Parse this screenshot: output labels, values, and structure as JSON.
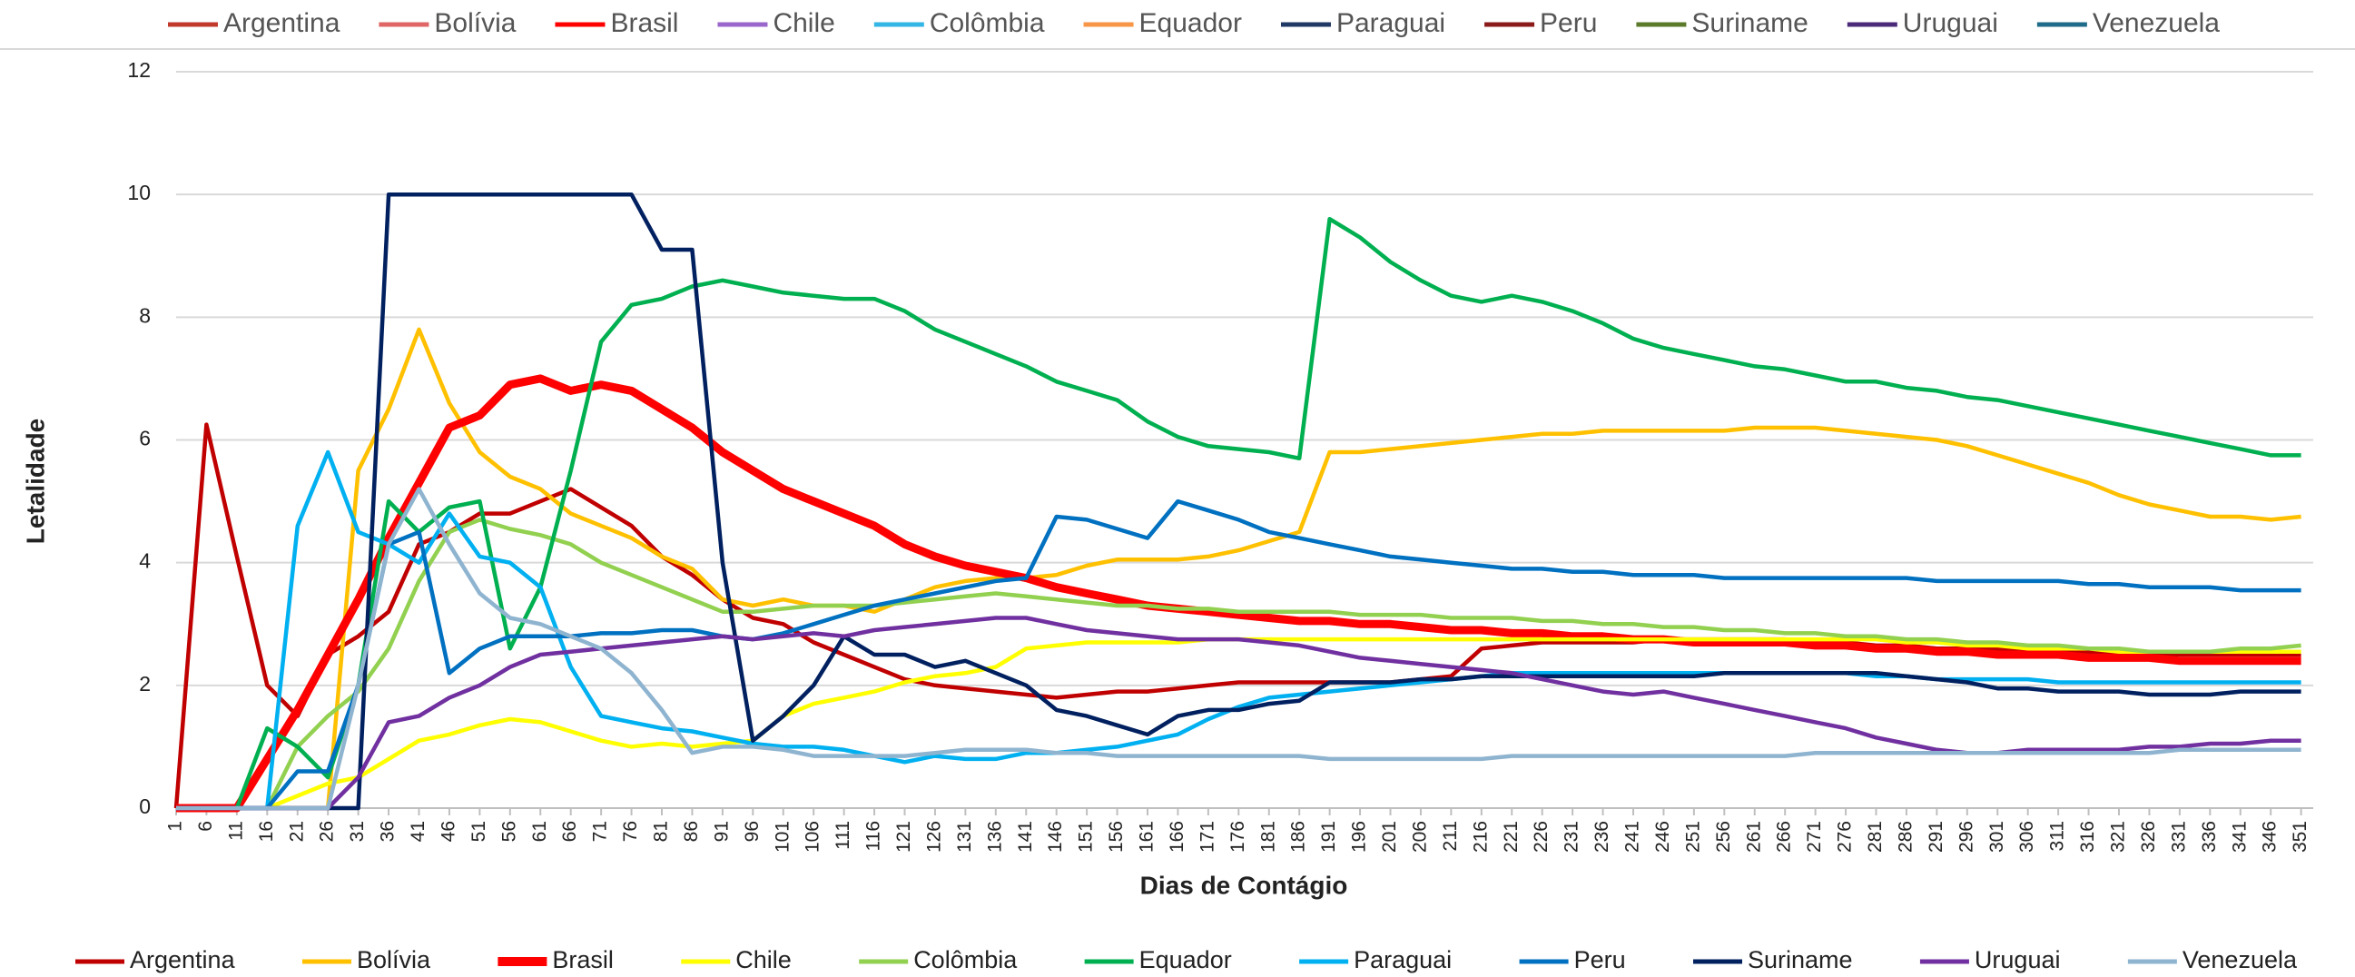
{
  "chart_data": {
    "type": "line",
    "top_legend": [
      {
        "name": "Argentina",
        "color": "#c0392b"
      },
      {
        "name": "Bolívia",
        "color": "#e06666"
      },
      {
        "name": "Brasil",
        "color": "#ff0000"
      },
      {
        "name": "Chile",
        "color": "#9966cc"
      },
      {
        "name": "Colômbia",
        "color": "#33b5e5"
      },
      {
        "name": "Equador",
        "color": "#f79646"
      },
      {
        "name": "Paraguai",
        "color": "#1f3864"
      },
      {
        "name": "Peru",
        "color": "#8b1a1a"
      },
      {
        "name": "Suriname",
        "color": "#5b7a2a"
      },
      {
        "name": "Uruguai",
        "color": "#4b2a7a"
      },
      {
        "name": "Venezuela",
        "color": "#1f6b8a"
      }
    ],
    "ylabel": "Letalidade",
    "xlabel": "Dias de Contágio",
    "x": [
      1,
      6,
      11,
      16,
      21,
      26,
      31,
      36,
      41,
      46,
      51,
      56,
      61,
      66,
      71,
      76,
      81,
      86,
      91,
      96,
      101,
      106,
      111,
      116,
      121,
      126,
      131,
      136,
      141,
      146,
      151,
      156,
      161,
      166,
      171,
      176,
      181,
      186,
      191,
      196,
      201,
      206,
      211,
      216,
      221,
      226,
      231,
      236,
      241,
      246,
      251,
      256,
      261,
      266,
      271,
      276,
      281,
      286,
      291,
      296,
      301,
      306,
      311,
      316,
      321,
      326,
      331,
      336,
      341,
      346,
      351
    ],
    "xticks": [
      1,
      6,
      11,
      16,
      21,
      26,
      31,
      36,
      41,
      46,
      51,
      56,
      61,
      66,
      71,
      76,
      81,
      86,
      91,
      96,
      101,
      106,
      111,
      116,
      121,
      126,
      131,
      136,
      141,
      146,
      151,
      156,
      161,
      166,
      171,
      176,
      181,
      186,
      191,
      196,
      201,
      206,
      211,
      216,
      221,
      226,
      231,
      236,
      241,
      246,
      251,
      256,
      261,
      266,
      271,
      276,
      281,
      286,
      291,
      296,
      301,
      306,
      311,
      316,
      321,
      326,
      331,
      336,
      341,
      346,
      351
    ],
    "xlim": [
      1,
      353
    ],
    "ylim": [
      0,
      12
    ],
    "yticks": [
      0,
      2,
      4,
      6,
      8,
      10,
      12
    ],
    "grid": true,
    "series": [
      {
        "name": "Argentina",
        "color": "#c00000",
        "values": [
          0,
          6.25,
          4.1,
          2.0,
          1.5,
          2.5,
          2.8,
          3.2,
          4.3,
          4.5,
          4.8,
          4.8,
          5.0,
          5.2,
          4.9,
          4.6,
          4.1,
          3.8,
          3.4,
          3.1,
          3.0,
          2.7,
          2.5,
          2.3,
          2.1,
          2.0,
          1.95,
          1.9,
          1.85,
          1.8,
          1.85,
          1.9,
          1.9,
          1.95,
          2.0,
          2.05,
          2.05,
          2.05,
          2.05,
          2.05,
          2.05,
          2.1,
          2.15,
          2.6,
          2.65,
          2.7,
          2.7,
          2.7,
          2.7,
          2.75,
          2.75,
          2.75,
          2.75,
          2.75,
          2.7,
          2.7,
          2.65,
          2.65,
          2.6,
          2.6,
          2.6,
          2.55,
          2.55,
          2.55,
          2.5,
          2.5,
          2.5,
          2.5,
          2.5,
          2.5,
          2.5
        ]
      },
      {
        "name": "Bolívia",
        "color": "#ffc000",
        "values": [
          0,
          0,
          0,
          0,
          0,
          0,
          5.5,
          6.5,
          7.8,
          6.6,
          5.8,
          5.4,
          5.2,
          4.8,
          4.6,
          4.4,
          4.1,
          3.9,
          3.4,
          3.3,
          3.4,
          3.3,
          3.3,
          3.2,
          3.4,
          3.6,
          3.7,
          3.75,
          3.75,
          3.8,
          3.95,
          4.05,
          4.05,
          4.05,
          4.1,
          4.2,
          4.35,
          4.5,
          5.8,
          5.8,
          5.85,
          5.9,
          5.95,
          6.0,
          6.05,
          6.1,
          6.1,
          6.15,
          6.15,
          6.15,
          6.15,
          6.15,
          6.2,
          6.2,
          6.2,
          6.15,
          6.1,
          6.05,
          6.0,
          5.9,
          5.75,
          5.6,
          5.45,
          5.3,
          5.1,
          4.95,
          4.85,
          4.75,
          4.75,
          4.7,
          4.75
        ]
      },
      {
        "name": "Brasil",
        "color": "#ff0000",
        "bold": true,
        "values": [
          0,
          0,
          0,
          0.8,
          1.6,
          2.5,
          3.4,
          4.4,
          5.3,
          6.2,
          6.4,
          6.9,
          7.0,
          6.8,
          6.9,
          6.8,
          6.5,
          6.2,
          5.8,
          5.5,
          5.2,
          5.0,
          4.8,
          4.6,
          4.3,
          4.1,
          3.95,
          3.85,
          3.75,
          3.6,
          3.5,
          3.4,
          3.3,
          3.25,
          3.2,
          3.15,
          3.1,
          3.05,
          3.05,
          3.0,
          3.0,
          2.95,
          2.9,
          2.9,
          2.85,
          2.85,
          2.8,
          2.8,
          2.75,
          2.75,
          2.7,
          2.7,
          2.7,
          2.7,
          2.65,
          2.65,
          2.6,
          2.6,
          2.55,
          2.55,
          2.5,
          2.5,
          2.5,
          2.45,
          2.45,
          2.45,
          2.4,
          2.4,
          2.4,
          2.4,
          2.4
        ]
      },
      {
        "name": "Chile",
        "color": "#ffff00",
        "values": [
          0,
          0,
          0,
          0,
          0.2,
          0.4,
          0.5,
          0.8,
          1.1,
          1.2,
          1.35,
          1.45,
          1.4,
          1.25,
          1.1,
          1.0,
          1.05,
          1.0,
          1.05,
          1.1,
          1.5,
          1.7,
          1.8,
          1.9,
          2.05,
          2.15,
          2.2,
          2.3,
          2.6,
          2.65,
          2.7,
          2.7,
          2.7,
          2.7,
          2.75,
          2.75,
          2.75,
          2.75,
          2.75,
          2.75,
          2.75,
          2.75,
          2.75,
          2.75,
          2.75,
          2.75,
          2.75,
          2.75,
          2.75,
          2.75,
          2.75,
          2.75,
          2.75,
          2.75,
          2.75,
          2.75,
          2.75,
          2.7,
          2.7,
          2.65,
          2.65,
          2.6,
          2.6,
          2.6,
          2.55,
          2.55,
          2.55,
          2.55,
          2.55,
          2.55,
          2.55
        ]
      },
      {
        "name": "Colômbia",
        "color": "#92d050",
        "values": [
          0,
          0,
          0,
          0,
          1.0,
          1.5,
          1.9,
          2.6,
          3.7,
          4.5,
          4.7,
          4.55,
          4.45,
          4.3,
          4.0,
          3.8,
          3.6,
          3.4,
          3.2,
          3.2,
          3.25,
          3.3,
          3.3,
          3.3,
          3.35,
          3.4,
          3.45,
          3.5,
          3.45,
          3.4,
          3.35,
          3.3,
          3.3,
          3.25,
          3.25,
          3.2,
          3.2,
          3.2,
          3.2,
          3.15,
          3.15,
          3.15,
          3.1,
          3.1,
          3.1,
          3.05,
          3.05,
          3.0,
          3.0,
          2.95,
          2.95,
          2.9,
          2.9,
          2.85,
          2.85,
          2.8,
          2.8,
          2.75,
          2.75,
          2.7,
          2.7,
          2.65,
          2.65,
          2.6,
          2.6,
          2.55,
          2.55,
          2.55,
          2.6,
          2.6,
          2.65
        ]
      },
      {
        "name": "Equador",
        "color": "#00b050",
        "values": [
          0,
          0,
          0,
          1.3,
          1.0,
          0.5,
          2.0,
          5.0,
          4.5,
          4.9,
          5.0,
          2.6,
          3.6,
          5.5,
          7.6,
          8.2,
          8.3,
          8.5,
          8.6,
          8.5,
          8.4,
          8.35,
          8.3,
          8.3,
          8.1,
          7.8,
          7.6,
          7.4,
          7.2,
          6.95,
          6.8,
          6.65,
          6.3,
          6.05,
          5.9,
          5.85,
          5.8,
          5.7,
          9.6,
          9.3,
          8.9,
          8.6,
          8.35,
          8.25,
          8.35,
          8.25,
          8.1,
          7.9,
          7.65,
          7.5,
          7.4,
          7.3,
          7.2,
          7.15,
          7.05,
          6.95,
          6.95,
          6.85,
          6.8,
          6.7,
          6.65,
          6.55,
          6.45,
          6.35,
          6.25,
          6.15,
          6.05,
          5.95,
          5.85,
          5.75,
          5.75
        ]
      },
      {
        "name": "Paraguai",
        "color": "#00b0f0",
        "values": [
          0,
          0,
          0,
          0,
          4.6,
          5.8,
          4.5,
          4.3,
          4.0,
          4.8,
          4.1,
          4.0,
          3.6,
          2.3,
          1.5,
          1.4,
          1.3,
          1.25,
          1.15,
          1.05,
          1.0,
          1.0,
          0.95,
          0.85,
          0.75,
          0.85,
          0.8,
          0.8,
          0.9,
          0.9,
          0.95,
          1.0,
          1.1,
          1.2,
          1.45,
          1.65,
          1.8,
          1.85,
          1.9,
          1.95,
          2.0,
          2.05,
          2.1,
          2.15,
          2.2,
          2.2,
          2.2,
          2.2,
          2.2,
          2.2,
          2.2,
          2.2,
          2.2,
          2.2,
          2.2,
          2.2,
          2.15,
          2.15,
          2.1,
          2.1,
          2.1,
          2.1,
          2.05,
          2.05,
          2.05,
          2.05,
          2.05,
          2.05,
          2.05,
          2.05,
          2.05
        ]
      },
      {
        "name": "Peru",
        "color": "#0070c0",
        "values": [
          0,
          0,
          0,
          0,
          0.6,
          0.6,
          2.0,
          4.3,
          4.5,
          2.2,
          2.6,
          2.8,
          2.8,
          2.8,
          2.85,
          2.85,
          2.9,
          2.9,
          2.8,
          2.75,
          2.85,
          3.0,
          3.15,
          3.3,
          3.4,
          3.5,
          3.6,
          3.7,
          3.75,
          4.75,
          4.7,
          4.55,
          4.4,
          5.0,
          4.85,
          4.7,
          4.5,
          4.4,
          4.3,
          4.2,
          4.1,
          4.05,
          4.0,
          3.95,
          3.9,
          3.9,
          3.85,
          3.85,
          3.8,
          3.8,
          3.8,
          3.75,
          3.75,
          3.75,
          3.75,
          3.75,
          3.75,
          3.75,
          3.7,
          3.7,
          3.7,
          3.7,
          3.7,
          3.65,
          3.65,
          3.6,
          3.6,
          3.6,
          3.55,
          3.55,
          3.55
        ]
      },
      {
        "name": "Suriname",
        "color": "#002060",
        "values": [
          0,
          0,
          0,
          0,
          0,
          0,
          0,
          10,
          10,
          10,
          10,
          10,
          10,
          10,
          10,
          10,
          9.1,
          9.1,
          4.0,
          1.1,
          1.5,
          2.0,
          2.8,
          2.5,
          2.5,
          2.3,
          2.4,
          2.2,
          2.0,
          1.6,
          1.5,
          1.35,
          1.2,
          1.5,
          1.6,
          1.6,
          1.7,
          1.75,
          2.05,
          2.05,
          2.05,
          2.1,
          2.1,
          2.15,
          2.15,
          2.15,
          2.15,
          2.15,
          2.15,
          2.15,
          2.15,
          2.2,
          2.2,
          2.2,
          2.2,
          2.2,
          2.2,
          2.15,
          2.1,
          2.05,
          1.95,
          1.95,
          1.9,
          1.9,
          1.9,
          1.85,
          1.85,
          1.85,
          1.9,
          1.9,
          1.9
        ]
      },
      {
        "name": "Uruguai",
        "color": "#7030a0",
        "values": [
          0,
          0,
          0,
          0,
          0,
          0,
          0.5,
          1.4,
          1.5,
          1.8,
          2.0,
          2.3,
          2.5,
          2.55,
          2.6,
          2.65,
          2.7,
          2.75,
          2.8,
          2.75,
          2.8,
          2.85,
          2.8,
          2.9,
          2.95,
          3.0,
          3.05,
          3.1,
          3.1,
          3.0,
          2.9,
          2.85,
          2.8,
          2.75,
          2.75,
          2.75,
          2.7,
          2.65,
          2.55,
          2.45,
          2.4,
          2.35,
          2.3,
          2.25,
          2.2,
          2.1,
          2.0,
          1.9,
          1.85,
          1.9,
          1.8,
          1.7,
          1.6,
          1.5,
          1.4,
          1.3,
          1.15,
          1.05,
          0.95,
          0.9,
          0.9,
          0.95,
          0.95,
          0.95,
          0.95,
          1.0,
          1.0,
          1.05,
          1.05,
          1.1,
          1.1
        ]
      },
      {
        "name": "Venezuela",
        "color": "#8fb4d0",
        "values": [
          0,
          0,
          0,
          0,
          0,
          0,
          2.0,
          4.3,
          5.2,
          4.3,
          3.5,
          3.1,
          3.0,
          2.8,
          2.6,
          2.2,
          1.6,
          0.9,
          1.0,
          1.0,
          0.95,
          0.85,
          0.85,
          0.85,
          0.85,
          0.9,
          0.95,
          0.95,
          0.95,
          0.9,
          0.9,
          0.85,
          0.85,
          0.85,
          0.85,
          0.85,
          0.85,
          0.85,
          0.8,
          0.8,
          0.8,
          0.8,
          0.8,
          0.8,
          0.85,
          0.85,
          0.85,
          0.85,
          0.85,
          0.85,
          0.85,
          0.85,
          0.85,
          0.85,
          0.9,
          0.9,
          0.9,
          0.9,
          0.9,
          0.9,
          0.9,
          0.9,
          0.9,
          0.9,
          0.9,
          0.9,
          0.95,
          0.95,
          0.95,
          0.95,
          0.95
        ]
      }
    ]
  }
}
